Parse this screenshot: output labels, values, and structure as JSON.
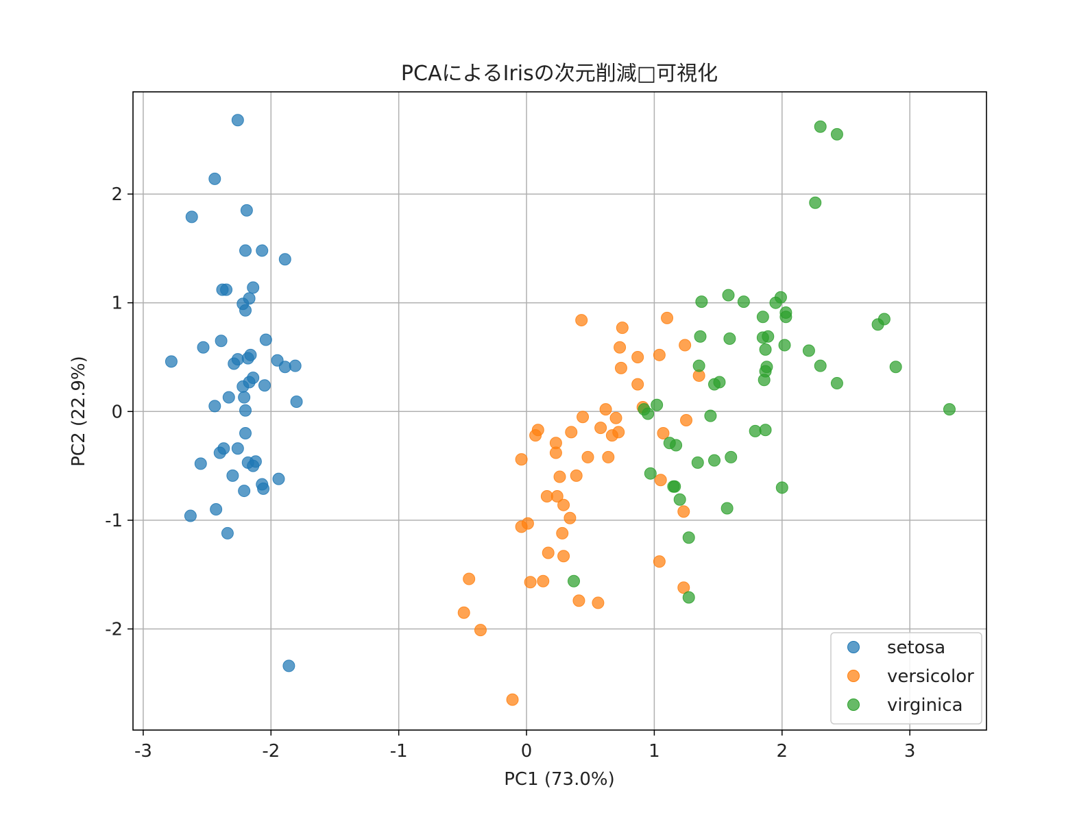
{
  "chart_data": {
    "type": "scatter",
    "title": "PCAによるIrisの次元削減□可視化",
    "xlabel": "PC1 (73.0%)",
    "ylabel": "PC2 (22.9%)",
    "xlim": [
      -3.08,
      3.6
    ],
    "ylim": [
      -2.93,
      2.94
    ],
    "xticks": [
      {
        "value": -3,
        "label": "-3"
      },
      {
        "value": -2,
        "label": "-2"
      },
      {
        "value": -1,
        "label": "-1"
      },
      {
        "value": 0,
        "label": "0"
      },
      {
        "value": 1,
        "label": "1"
      },
      {
        "value": 2,
        "label": "2"
      },
      {
        "value": 3,
        "label": "3"
      }
    ],
    "yticks": [
      {
        "value": -2,
        "label": "-2"
      },
      {
        "value": -1,
        "label": "-1"
      },
      {
        "value": 0,
        "label": "0"
      },
      {
        "value": 1,
        "label": "1"
      },
      {
        "value": 2,
        "label": "2"
      }
    ],
    "grid": true,
    "legend_position": "lower-right",
    "series": [
      {
        "name": "setosa",
        "color": "#1f77b4",
        "points": [
          [
            -2.26,
            2.68
          ],
          [
            -2.44,
            2.14
          ],
          [
            -2.62,
            1.79
          ],
          [
            -2.19,
            1.85
          ],
          [
            -2.2,
            1.48
          ],
          [
            -2.07,
            1.48
          ],
          [
            -1.89,
            1.4
          ],
          [
            -2.38,
            1.12
          ],
          [
            -2.35,
            1.12
          ],
          [
            -2.14,
            1.14
          ],
          [
            -2.22,
            0.99
          ],
          [
            -2.17,
            1.04
          ],
          [
            -2.2,
            0.93
          ],
          [
            -2.39,
            0.65
          ],
          [
            -2.53,
            0.59
          ],
          [
            -2.78,
            0.46
          ],
          [
            -2.26,
            0.48
          ],
          [
            -2.29,
            0.44
          ],
          [
            -2.18,
            0.49
          ],
          [
            -2.16,
            0.52
          ],
          [
            -2.04,
            0.66
          ],
          [
            -1.95,
            0.47
          ],
          [
            -1.89,
            0.41
          ],
          [
            -1.81,
            0.42
          ],
          [
            -2.22,
            0.23
          ],
          [
            -2.14,
            0.31
          ],
          [
            -2.17,
            0.27
          ],
          [
            -2.05,
            0.24
          ],
          [
            -2.33,
            0.13
          ],
          [
            -2.21,
            0.13
          ],
          [
            -2.44,
            0.05
          ],
          [
            -2.2,
            0.01
          ],
          [
            -1.8,
            0.09
          ],
          [
            -2.2,
            -0.2
          ],
          [
            -2.37,
            -0.34
          ],
          [
            -2.26,
            -0.34
          ],
          [
            -2.4,
            -0.38
          ],
          [
            -2.55,
            -0.48
          ],
          [
            -2.18,
            -0.47
          ],
          [
            -2.12,
            -0.46
          ],
          [
            -2.14,
            -0.5
          ],
          [
            -2.3,
            -0.59
          ],
          [
            -2.07,
            -0.67
          ],
          [
            -2.06,
            -0.71
          ],
          [
            -2.21,
            -0.73
          ],
          [
            -1.94,
            -0.62
          ],
          [
            -2.63,
            -0.96
          ],
          [
            -2.43,
            -0.9
          ],
          [
            -2.34,
            -1.12
          ],
          [
            -1.86,
            -2.34
          ]
        ]
      },
      {
        "name": "versicolor",
        "color": "#ff7f0e",
        "points": [
          [
            0.43,
            0.84
          ],
          [
            0.75,
            0.77
          ],
          [
            1.1,
            0.86
          ],
          [
            0.73,
            0.59
          ],
          [
            0.87,
            0.5
          ],
          [
            1.04,
            0.52
          ],
          [
            1.24,
            0.61
          ],
          [
            0.74,
            0.4
          ],
          [
            0.87,
            0.25
          ],
          [
            1.35,
            0.33
          ],
          [
            0.62,
            0.02
          ],
          [
            0.91,
            0.04
          ],
          [
            0.44,
            -0.05
          ],
          [
            0.7,
            -0.06
          ],
          [
            1.25,
            -0.08
          ],
          [
            0.58,
            -0.15
          ],
          [
            0.72,
            -0.19
          ],
          [
            0.67,
            -0.22
          ],
          [
            0.35,
            -0.19
          ],
          [
            0.09,
            -0.17
          ],
          [
            0.07,
            -0.22
          ],
          [
            1.07,
            -0.2
          ],
          [
            0.23,
            -0.29
          ],
          [
            0.23,
            -0.38
          ],
          [
            -0.04,
            -0.44
          ],
          [
            0.48,
            -0.42
          ],
          [
            0.64,
            -0.42
          ],
          [
            0.26,
            -0.6
          ],
          [
            0.39,
            -0.59
          ],
          [
            1.05,
            -0.63
          ],
          [
            0.16,
            -0.78
          ],
          [
            0.24,
            -0.78
          ],
          [
            0.29,
            -0.86
          ],
          [
            1.23,
            -0.92
          ],
          [
            0.34,
            -0.98
          ],
          [
            0.01,
            -1.03
          ],
          [
            -0.04,
            -1.06
          ],
          [
            0.28,
            -1.12
          ],
          [
            0.17,
            -1.3
          ],
          [
            0.29,
            -1.33
          ],
          [
            1.04,
            -1.38
          ],
          [
            0.03,
            -1.57
          ],
          [
            0.13,
            -1.56
          ],
          [
            -0.45,
            -1.54
          ],
          [
            0.41,
            -1.74
          ],
          [
            0.56,
            -1.76
          ],
          [
            1.23,
            -1.62
          ],
          [
            -0.49,
            -1.85
          ],
          [
            -0.36,
            -2.01
          ],
          [
            -0.11,
            -2.65
          ]
        ]
      },
      {
        "name": "virginica",
        "color": "#2ca02c",
        "points": [
          [
            2.3,
            2.62
          ],
          [
            2.43,
            2.55
          ],
          [
            2.26,
            1.92
          ],
          [
            1.58,
            1.07
          ],
          [
            1.99,
            1.05
          ],
          [
            1.37,
            1.01
          ],
          [
            1.7,
            1.01
          ],
          [
            1.95,
            1.0
          ],
          [
            2.03,
            0.91
          ],
          [
            2.03,
            0.87
          ],
          [
            1.85,
            0.87
          ],
          [
            2.8,
            0.85
          ],
          [
            2.75,
            0.8
          ],
          [
            1.36,
            0.69
          ],
          [
            1.59,
            0.67
          ],
          [
            1.89,
            0.69
          ],
          [
            1.85,
            0.68
          ],
          [
            2.02,
            0.61
          ],
          [
            1.87,
            0.57
          ],
          [
            2.21,
            0.56
          ],
          [
            1.35,
            0.42
          ],
          [
            2.3,
            0.42
          ],
          [
            2.89,
            0.41
          ],
          [
            1.88,
            0.41
          ],
          [
            1.87,
            0.37
          ],
          [
            1.51,
            0.27
          ],
          [
            1.47,
            0.25
          ],
          [
            2.43,
            0.26
          ],
          [
            1.86,
            0.29
          ],
          [
            3.31,
            0.02
          ],
          [
            1.02,
            0.06
          ],
          [
            0.92,
            0.02
          ],
          [
            0.95,
            -0.02
          ],
          [
            1.44,
            -0.04
          ],
          [
            1.79,
            -0.18
          ],
          [
            1.87,
            -0.17
          ],
          [
            1.12,
            -0.29
          ],
          [
            1.17,
            -0.31
          ],
          [
            1.6,
            -0.42
          ],
          [
            1.47,
            -0.45
          ],
          [
            1.34,
            -0.47
          ],
          [
            0.97,
            -0.57
          ],
          [
            1.15,
            -0.69
          ],
          [
            1.16,
            -0.69
          ],
          [
            2.0,
            -0.7
          ],
          [
            1.2,
            -0.81
          ],
          [
            1.57,
            -0.89
          ],
          [
            1.27,
            -1.16
          ],
          [
            0.37,
            -1.56
          ],
          [
            1.27,
            -1.71
          ]
        ]
      }
    ]
  }
}
